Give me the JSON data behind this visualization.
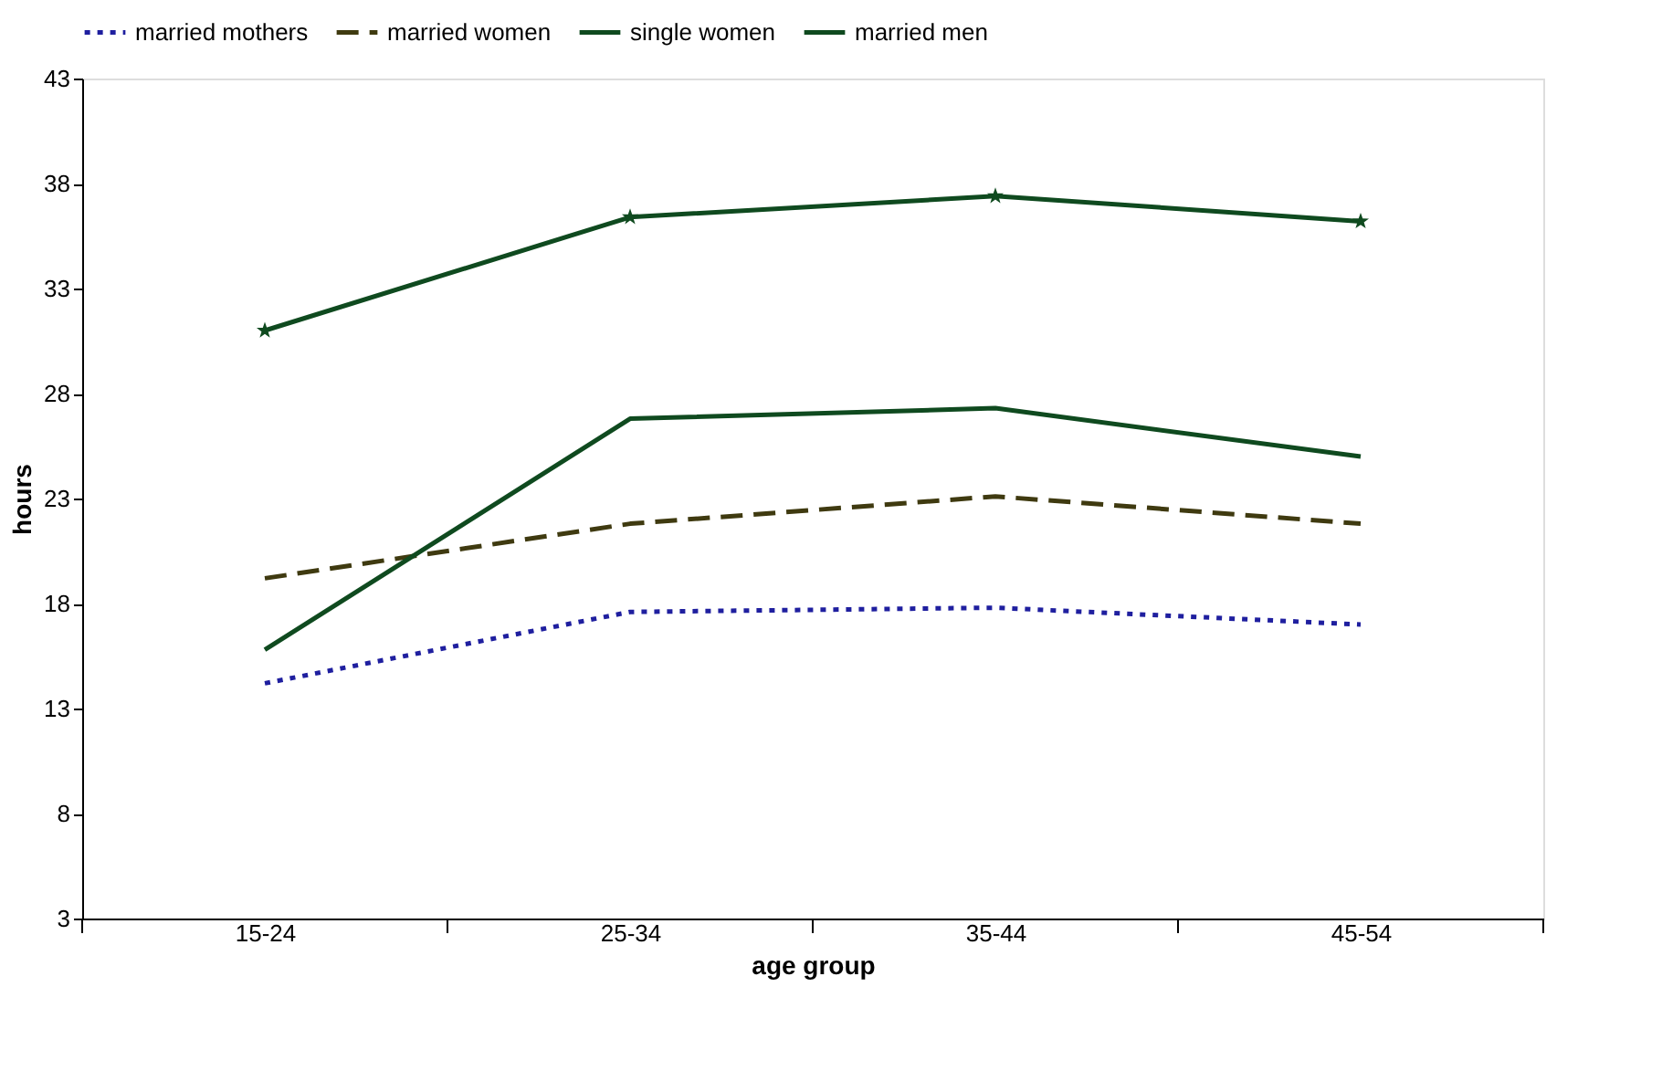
{
  "chart_data": {
    "type": "line",
    "xlabel": "age group",
    "ylabel": "hours",
    "categories": [
      "15-24",
      "25-34",
      "35-44",
      "45-54"
    ],
    "ylim": [
      3,
      43
    ],
    "yticks": [
      3,
      8,
      13,
      18,
      23,
      28,
      33,
      38,
      43
    ],
    "grid": false,
    "legend": "top",
    "series": [
      {
        "name": "married mothers",
        "color": "#1f1f9f",
        "line_style": "dotted",
        "marker": "none",
        "values": [
          14.2,
          17.6,
          17.8,
          17.0
        ]
      },
      {
        "name": "married women",
        "color": "#3f3a10",
        "line_style": "dashed",
        "marker": "none",
        "values": [
          19.2,
          21.8,
          23.1,
          21.8
        ]
      },
      {
        "name": "single women",
        "color": "#0f4a1f",
        "line_style": "solid",
        "marker": "none",
        "values": [
          15.8,
          26.8,
          27.3,
          25.0
        ]
      },
      {
        "name": "married men",
        "color": "#0f4a1f",
        "line_style": "solid",
        "marker": "star",
        "values": [
          31.0,
          36.4,
          37.4,
          36.2
        ]
      }
    ]
  }
}
